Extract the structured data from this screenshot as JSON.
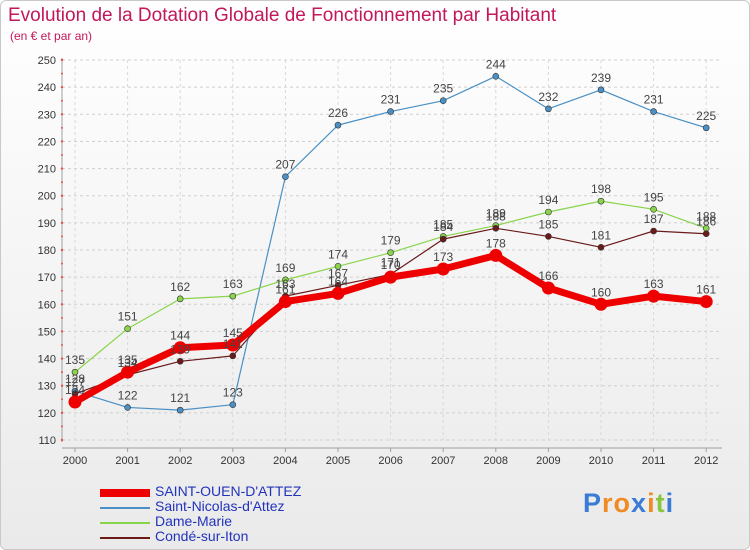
{
  "chart_data": {
    "type": "line",
    "title": "Evolution de la Dotation Globale de Fonctionnement par Habitant",
    "subtitle": "(en € et par an)",
    "categories": [
      "2000",
      "2001",
      "2002",
      "2003",
      "2004",
      "2005",
      "2006",
      "2007",
      "2008",
      "2009",
      "2010",
      "2011",
      "2012"
    ],
    "ylim": [
      110,
      250
    ],
    "yticks": [
      110,
      120,
      130,
      140,
      150,
      160,
      170,
      180,
      190,
      200,
      210,
      220,
      230,
      240,
      250
    ],
    "series": [
      {
        "name": "Saint-Nicolas-d'Attez",
        "color": "#4a90c4",
        "values": [
          128,
          122,
          121,
          123,
          207,
          226,
          231,
          235,
          244,
          232,
          239,
          231,
          225
        ]
      },
      {
        "name": "Dame-Marie",
        "color": "#88d44a",
        "values": [
          135,
          151,
          162,
          163,
          169,
          174,
          179,
          185,
          189,
          194,
          198,
          195,
          188
        ]
      },
      {
        "name": "Condé-sur-Iton",
        "color": "#6b1a1a",
        "values": [
          127,
          134,
          139,
          141,
          163,
          167,
          171,
          184,
          188,
          185,
          181,
          187,
          186
        ]
      },
      {
        "name": "SAINT-OUEN-D'ATTEZ",
        "color": "#ee0000",
        "values": [
          124,
          135,
          144,
          145,
          161,
          164,
          170,
          173,
          178,
          166,
          160,
          163,
          161
        ]
      }
    ]
  },
  "legend": [
    {
      "label": "SAINT-OUEN-D'ATTEZ",
      "color": "#ee0000"
    },
    {
      "label": "Saint-Nicolas-d'Attez",
      "color": "#4a90c4"
    },
    {
      "label": "Dame-Marie",
      "color": "#88d44a"
    },
    {
      "label": "Condé-sur-Iton",
      "color": "#6b1a1a"
    }
  ],
  "logo": {
    "text": "Proxiti",
    "letter_colors": [
      "#3a7bd5",
      "#f08a24",
      "#f08a24",
      "#3a7bd5",
      "#f08a24",
      "#88c540",
      "#3a7bd5"
    ]
  }
}
